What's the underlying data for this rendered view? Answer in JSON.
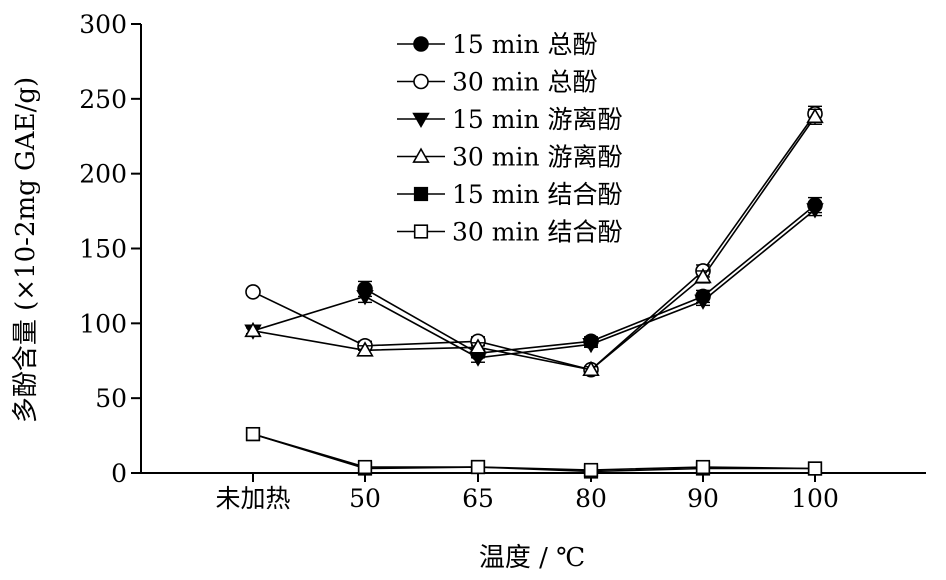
{
  "chart_data": {
    "type": "line",
    "xlabel": "温度 / ℃",
    "ylabel": "多酚含量 (×10-2mg GAE/g)",
    "categories": [
      "未加热",
      "50",
      "65",
      "80",
      "90",
      "100"
    ],
    "ylim": [
      0,
      300
    ],
    "yticks": [
      0,
      50,
      100,
      150,
      200,
      250,
      300
    ],
    "grid": false,
    "legend_position": "top-center",
    "series": [
      {
        "name": "15 min 总酚",
        "marker": "circle",
        "fill": "filled",
        "values": [
          null,
          123,
          80,
          88,
          118,
          179
        ],
        "errors": [
          0,
          5,
          3,
          3,
          4,
          5
        ]
      },
      {
        "name": "30 min 总酚",
        "marker": "circle",
        "fill": "open",
        "values": [
          121,
          85,
          88,
          69,
          135,
          240
        ],
        "errors": [
          2,
          3,
          3,
          2,
          4,
          5
        ]
      },
      {
        "name": "15 min 游离酚",
        "marker": "triangle-down",
        "fill": "filled",
        "values": [
          95,
          118,
          77,
          86,
          115,
          176
        ],
        "errors": [
          2,
          4,
          3,
          2,
          3,
          4
        ]
      },
      {
        "name": "30 min 游离酚",
        "marker": "triangle-up",
        "fill": "open",
        "values": [
          95,
          82,
          84,
          69,
          131,
          238
        ],
        "errors": [
          2,
          3,
          3,
          2,
          4,
          5
        ]
      },
      {
        "name": "15 min 结合酚",
        "marker": "square",
        "fill": "filled",
        "values": [
          26,
          3,
          4,
          1,
          3,
          3
        ],
        "errors": [
          1,
          1,
          1,
          1,
          1,
          1
        ]
      },
      {
        "name": "30 min 结合酚",
        "marker": "square",
        "fill": "open",
        "values": [
          26,
          4,
          4,
          2,
          4,
          3
        ],
        "errors": [
          1,
          1,
          1,
          1,
          1,
          1
        ]
      }
    ]
  }
}
